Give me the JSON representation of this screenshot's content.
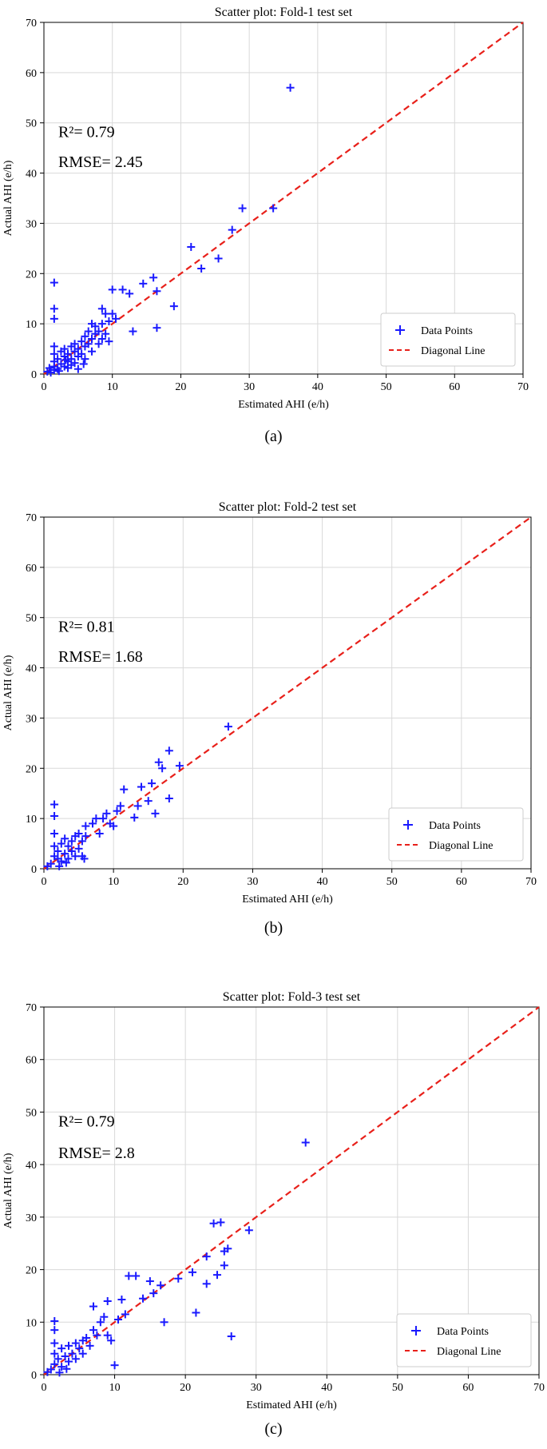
{
  "chart_data": [
    {
      "type": "scatter",
      "title": "Scatter plot: Fold-1 test set",
      "xlabel": "Estimated AHI (e/h)",
      "ylabel": "Actual AHI (e/h)",
      "xlim": [
        0,
        70
      ],
      "ylim": [
        0,
        70
      ],
      "xticks": [
        "0",
        "10",
        "20",
        "30",
        "40",
        "50",
        "60",
        "70"
      ],
      "yticks": [
        "0",
        "10",
        "20",
        "30",
        "40",
        "50",
        "60",
        "70"
      ],
      "grid": true,
      "legend": {
        "placement": "bottom-right",
        "entries": [
          "Data Points",
          "Diagonal Line"
        ]
      },
      "annotation": {
        "r2": "R²= 0.79",
        "rmse": "RMSE= 2.45"
      },
      "sublabel": "(a)",
      "series": [
        {
          "name": "Data Points",
          "points": [
            [
              1.5,
              18.2
            ],
            [
              1.5,
              13.0
            ],
            [
              1.5,
              11.0
            ],
            [
              1.5,
              5.5
            ],
            [
              1.5,
              4.0
            ],
            [
              1.5,
              2.5
            ],
            [
              1.5,
              1.5
            ],
            [
              1.5,
              0.8
            ],
            [
              0.5,
              0.5
            ],
            [
              0.8,
              1.2
            ],
            [
              1.0,
              0.3
            ],
            [
              2.0,
              1.0
            ],
            [
              2.0,
              3.0
            ],
            [
              2.5,
              2.0
            ],
            [
              2.5,
              4.5
            ],
            [
              3.0,
              1.5
            ],
            [
              3.0,
              3.5
            ],
            [
              3.0,
              5.0
            ],
            [
              3.5,
              2.5
            ],
            [
              3.5,
              4.0
            ],
            [
              3.5,
              1.2
            ],
            [
              4.0,
              3.0
            ],
            [
              4.0,
              5.5
            ],
            [
              4.0,
              1.8
            ],
            [
              4.5,
              4.5
            ],
            [
              4.5,
              2.2
            ],
            [
              4.5,
              6.0
            ],
            [
              5.0,
              3.5
            ],
            [
              5.0,
              5.0
            ],
            [
              5.0,
              1.0
            ],
            [
              5.5,
              6.5
            ],
            [
              5.5,
              4.0
            ],
            [
              6.0,
              7.5
            ],
            [
              6.0,
              5.5
            ],
            [
              6.0,
              3.0
            ],
            [
              6.5,
              8.5
            ],
            [
              6.5,
              6.0
            ],
            [
              7.0,
              10.0
            ],
            [
              7.0,
              7.0
            ],
            [
              7.0,
              4.5
            ],
            [
              7.5,
              8.0
            ],
            [
              7.5,
              9.5
            ],
            [
              8.0,
              6.0
            ],
            [
              8.0,
              8.5
            ],
            [
              8.5,
              10.0
            ],
            [
              8.5,
              13.0
            ],
            [
              8.5,
              7.0
            ],
            [
              9.0,
              8.0
            ],
            [
              9.0,
              12.0
            ],
            [
              9.5,
              6.5
            ],
            [
              9.5,
              10.5
            ],
            [
              10.0,
              16.8
            ],
            [
              10.0,
              12.0
            ],
            [
              10.5,
              11.0
            ],
            [
              11.5,
              16.8
            ],
            [
              12.5,
              16.0
            ],
            [
              13.0,
              8.5
            ],
            [
              14.5,
              18.0
            ],
            [
              16.0,
              19.2
            ],
            [
              16.5,
              16.5
            ],
            [
              16.5,
              9.2
            ],
            [
              19.0,
              13.5
            ],
            [
              21.5,
              25.3
            ],
            [
              23.0,
              21.0
            ],
            [
              25.5,
              23.0
            ],
            [
              27.5,
              28.7
            ],
            [
              29.0,
              33.0
            ],
            [
              33.5,
              33.0
            ],
            [
              36.0,
              57.0
            ],
            [
              2.2,
              0.6
            ],
            [
              3.2,
              2.8
            ],
            [
              5.8,
              2.0
            ]
          ]
        }
      ]
    },
    {
      "type": "scatter",
      "title": "Scatter plot: Fold-2 test set",
      "xlabel": "Estimated AHI (e/h)",
      "ylabel": "Actual AHI (e/h)",
      "xlim": [
        0,
        70
      ],
      "ylim": [
        0,
        70
      ],
      "xticks": [
        "0",
        "10",
        "20",
        "30",
        "40",
        "50",
        "60",
        "70"
      ],
      "yticks": [
        "0",
        "10",
        "20",
        "30",
        "40",
        "50",
        "60",
        "70"
      ],
      "grid": true,
      "legend": {
        "placement": "bottom-right",
        "entries": [
          "Data Points",
          "Diagonal Line"
        ]
      },
      "annotation": {
        "r2": "R²= 0.81",
        "rmse": "RMSE= 1.68"
      },
      "sublabel": "(b)",
      "series": [
        {
          "name": "Data Points",
          "points": [
            [
              1.5,
              12.8
            ],
            [
              1.5,
              10.5
            ],
            [
              1.5,
              7.0
            ],
            [
              1.5,
              4.5
            ],
            [
              1.5,
              2.5
            ],
            [
              1.0,
              1.0
            ],
            [
              0.5,
              0.5
            ],
            [
              2.0,
              2.0
            ],
            [
              2.0,
              3.5
            ],
            [
              2.5,
              1.5
            ],
            [
              2.5,
              5.0
            ],
            [
              3.0,
              3.0
            ],
            [
              3.0,
              6.0
            ],
            [
              3.5,
              2.0
            ],
            [
              3.5,
              4.5
            ],
            [
              4.0,
              3.5
            ],
            [
              4.0,
              5.5
            ],
            [
              4.5,
              2.5
            ],
            [
              4.5,
              6.5
            ],
            [
              5.0,
              4.0
            ],
            [
              5.0,
              7.0
            ],
            [
              5.5,
              2.5
            ],
            [
              5.5,
              5.5
            ],
            [
              6.0,
              8.5
            ],
            [
              6.0,
              6.5
            ],
            [
              7.0,
              9.0
            ],
            [
              7.5,
              10.0
            ],
            [
              8.0,
              7.0
            ],
            [
              8.5,
              10.0
            ],
            [
              9.0,
              11.0
            ],
            [
              9.5,
              9.0
            ],
            [
              10.0,
              8.5
            ],
            [
              10.5,
              11.5
            ],
            [
              11.0,
              12.5
            ],
            [
              11.5,
              15.8
            ],
            [
              13.0,
              10.2
            ],
            [
              13.5,
              12.5
            ],
            [
              14.0,
              16.3
            ],
            [
              15.0,
              13.5
            ],
            [
              15.5,
              17.0
            ],
            [
              16.0,
              11.0
            ],
            [
              16.5,
              21.2
            ],
            [
              17.0,
              20.0
            ],
            [
              18.0,
              14.0
            ],
            [
              18.0,
              23.5
            ],
            [
              19.5,
              20.5
            ],
            [
              26.5,
              28.3
            ],
            [
              2.2,
              0.5
            ],
            [
              3.2,
              1.2
            ],
            [
              5.8,
              2.0
            ]
          ]
        }
      ]
    },
    {
      "type": "scatter",
      "title": "Scatter plot: Fold-3 test set",
      "xlabel": "Estimated AHI (e/h)",
      "ylabel": "Actual AHI (e/h)",
      "xlim": [
        0,
        70
      ],
      "ylim": [
        0,
        70
      ],
      "xticks": [
        "0",
        "10",
        "20",
        "30",
        "40",
        "50",
        "60",
        "70"
      ],
      "yticks": [
        "0",
        "10",
        "20",
        "30",
        "40",
        "50",
        "60",
        "70"
      ],
      "grid": true,
      "legend": {
        "placement": "bottom-right",
        "entries": [
          "Data Points",
          "Diagonal Line"
        ]
      },
      "annotation": {
        "r2": "R²= 0.79",
        "rmse": "RMSE= 2.8"
      },
      "sublabel": "(c)",
      "series": [
        {
          "name": "Data Points",
          "points": [
            [
              1.5,
              10.2
            ],
            [
              1.5,
              8.5
            ],
            [
              1.5,
              6.0
            ],
            [
              1.5,
              4.0
            ],
            [
              1.5,
              2.0
            ],
            [
              1.0,
              1.0
            ],
            [
              0.5,
              0.5
            ],
            [
              2.0,
              3.0
            ],
            [
              2.5,
              1.5
            ],
            [
              2.5,
              5.0
            ],
            [
              3.0,
              3.5
            ],
            [
              3.5,
              2.5
            ],
            [
              3.5,
              5.5
            ],
            [
              4.0,
              4.0
            ],
            [
              4.5,
              3.0
            ],
            [
              4.5,
              6.0
            ],
            [
              5.0,
              5.0
            ],
            [
              5.5,
              4.0
            ],
            [
              5.5,
              6.5
            ],
            [
              6.0,
              7.0
            ],
            [
              6.5,
              5.5
            ],
            [
              7.0,
              8.5
            ],
            [
              7.0,
              13.0
            ],
            [
              7.5,
              7.5
            ],
            [
              8.0,
              10.0
            ],
            [
              8.5,
              11.0
            ],
            [
              9.0,
              14.0
            ],
            [
              9.0,
              7.5
            ],
            [
              9.5,
              6.5
            ],
            [
              10.0,
              1.8
            ],
            [
              10.5,
              10.5
            ],
            [
              11.0,
              14.3
            ],
            [
              11.5,
              11.5
            ],
            [
              12.0,
              18.8
            ],
            [
              13.0,
              18.8
            ],
            [
              14.0,
              14.5
            ],
            [
              15.0,
              17.8
            ],
            [
              15.5,
              15.5
            ],
            [
              16.5,
              17.0
            ],
            [
              17.0,
              10.0
            ],
            [
              19.0,
              18.3
            ],
            [
              21.0,
              19.5
            ],
            [
              21.5,
              11.8
            ],
            [
              23.0,
              17.3
            ],
            [
              23.0,
              22.5
            ],
            [
              24.0,
              28.8
            ],
            [
              24.5,
              19.0
            ],
            [
              25.0,
              29.0
            ],
            [
              25.5,
              23.5
            ],
            [
              25.5,
              20.8
            ],
            [
              26.0,
              24.0
            ],
            [
              26.5,
              7.3
            ],
            [
              29.0,
              27.5
            ],
            [
              37.0,
              44.2
            ],
            [
              2.2,
              0.4
            ],
            [
              3.2,
              1.1
            ]
          ]
        }
      ]
    }
  ],
  "colors": {
    "points": "#1a1aff",
    "diagonal": "#e8201a",
    "grid": "#d9d9d9",
    "axes": "#000000"
  }
}
